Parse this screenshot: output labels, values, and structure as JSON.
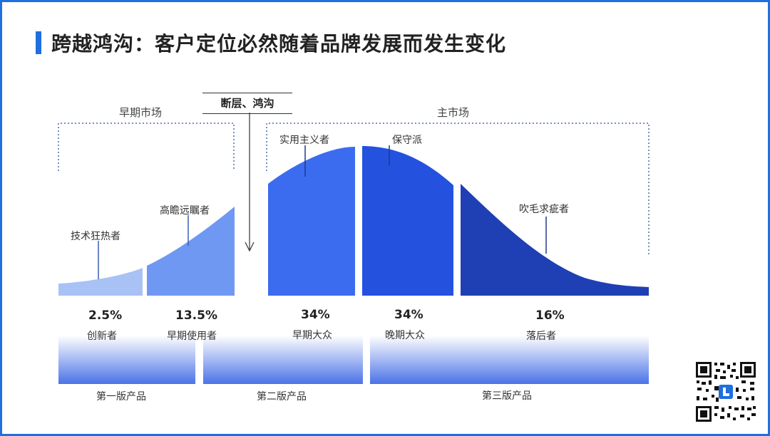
{
  "title": "跨越鸿沟：客户定位必然随着品牌发展而发生变化",
  "markets": {
    "early": "早期市场",
    "chasm": "断层、鸿沟",
    "main": "主市场"
  },
  "segments": [
    {
      "name": "技术狂热者",
      "percent": "2.5%",
      "group_label": "创新者",
      "color": "#a9c2f5"
    },
    {
      "name": "高瞻远瞩者",
      "percent": "13.5%",
      "group_label": "早期使用者",
      "color": "#6f98f2"
    },
    {
      "name": "实用主义者",
      "percent": "34%",
      "group_label": "早期大众",
      "color": "#3b6cf0"
    },
    {
      "name": "保守派",
      "percent": "34%",
      "group_label": "晚期大众",
      "color": "#2452de"
    },
    {
      "name": "吹毛求疵者",
      "percent": "16%",
      "group_label": "落后者",
      "color": "#1f3fb5"
    }
  ],
  "versions": [
    "第一版产品",
    "第二版产品",
    "第三版产品"
  ],
  "colors": {
    "accent": "#1f6fe0",
    "border": "#1f6fe0"
  },
  "icons": {
    "qr": "qr-code-icon"
  }
}
